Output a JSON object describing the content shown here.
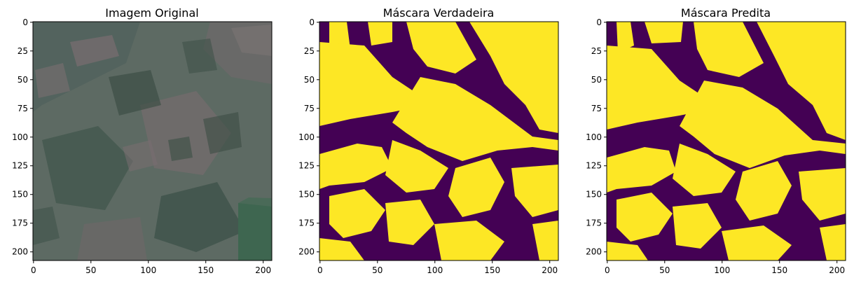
{
  "panels": [
    {
      "title": "Imagem Original",
      "kind": "satellite",
      "x_ticks": [
        "0",
        "50",
        "100",
        "150",
        "200"
      ],
      "y_ticks": [
        "0",
        "25",
        "50",
        "75",
        "100",
        "125",
        "150",
        "175",
        "200"
      ]
    },
    {
      "title": "Máscara Verdadeira",
      "kind": "mask",
      "x_ticks": [
        "0",
        "50",
        "100",
        "150",
        "200"
      ],
      "y_ticks": [
        "0",
        "25",
        "50",
        "75",
        "100",
        "125",
        "150",
        "175",
        "200"
      ]
    },
    {
      "title": "Máscara Predita",
      "kind": "mask",
      "x_ticks": [
        "0",
        "50",
        "100",
        "150",
        "200"
      ],
      "y_ticks": [
        "0",
        "25",
        "50",
        "75",
        "100",
        "125",
        "150",
        "175",
        "200"
      ]
    }
  ],
  "image_size": [
    208,
    208
  ],
  "colors": {
    "mask_background": "#440154",
    "mask_foreground": "#fde725",
    "satellite_base": "#5d6a63",
    "satellite_dark": "#3b4d45",
    "satellite_pink": "#7d6f72",
    "satellite_green": "#3e6650"
  }
}
